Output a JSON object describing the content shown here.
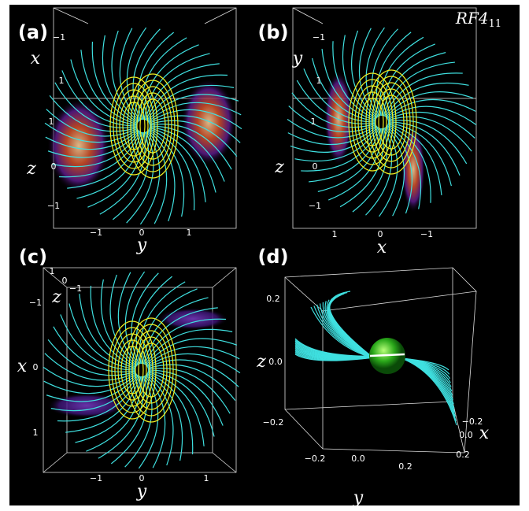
{
  "title": {
    "main": "RF4",
    "sub": "11"
  },
  "panels": [
    {
      "label": "(a)",
      "axes": [
        {
          "name": "x",
          "ticks": [
            "−1",
            "1"
          ]
        },
        {
          "name": "z",
          "ticks": [
            "1",
            "0",
            "−1"
          ]
        },
        {
          "name": "y",
          "ticks": [
            "−1",
            "0",
            "1"
          ]
        }
      ]
    },
    {
      "label": "(b)",
      "axes": [
        {
          "name": "y",
          "ticks": [
            "−1",
            "1"
          ]
        },
        {
          "name": "z",
          "ticks": [
            "1",
            "0",
            "−1"
          ]
        },
        {
          "name": "x",
          "ticks": [
            "1",
            "0",
            "−1"
          ]
        }
      ]
    },
    {
      "label": "(c)",
      "axes": [
        {
          "name": "z",
          "ticks": [
            "1",
            "0",
            "−1"
          ]
        },
        {
          "name": "x",
          "ticks": [
            "−1",
            "0",
            "1"
          ]
        },
        {
          "name": "y",
          "ticks": [
            "−1",
            "0",
            "1"
          ]
        }
      ]
    },
    {
      "label": "(d)",
      "axes": [
        {
          "name": "z",
          "ticks": [
            "0.2",
            "0.0",
            "−0.2"
          ]
        },
        {
          "name": "y",
          "ticks": [
            "−0.2",
            "0.0",
            "0.2"
          ]
        },
        {
          "name": "x",
          "ticks": [
            "−0.2",
            "0.0",
            "0.2"
          ]
        }
      ]
    }
  ]
}
